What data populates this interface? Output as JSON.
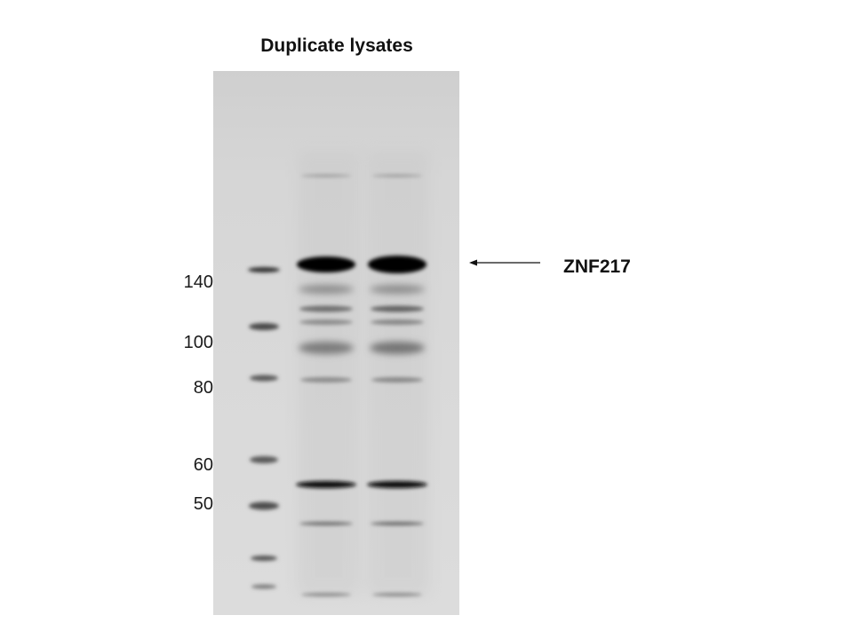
{
  "title": "Duplicate lysates",
  "target_label": "ZNF217",
  "mw_markers": [
    "140",
    "100",
    "80",
    "60",
    "50"
  ]
}
